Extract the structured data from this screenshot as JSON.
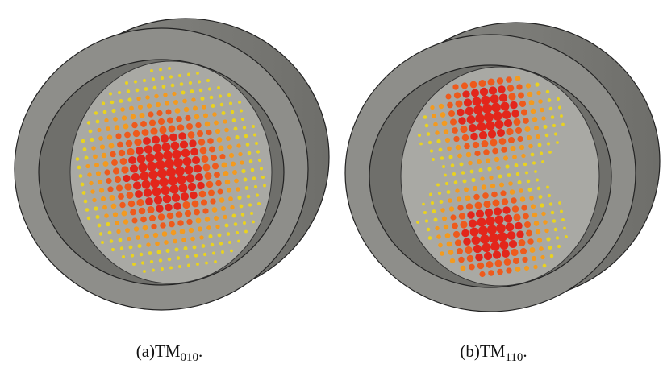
{
  "panels": [
    {
      "label": "(a)TM",
      "subscript": "010",
      "end": "."
    },
    {
      "label": "(b)TM",
      "subscript": "110",
      "end": "."
    }
  ]
}
